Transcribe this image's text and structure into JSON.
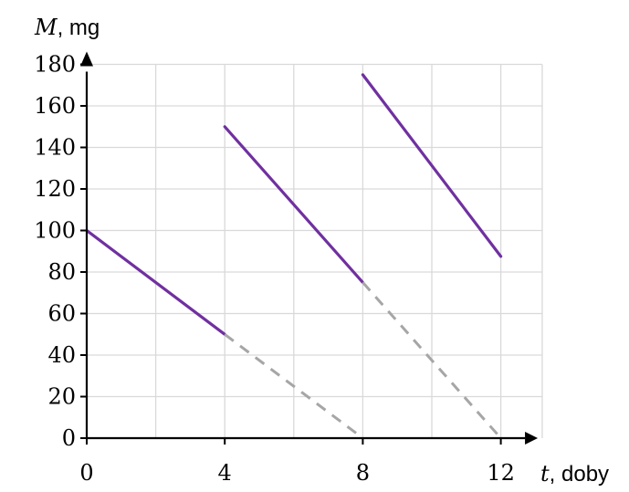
{
  "chart_data": {
    "type": "line",
    "x_label": {
      "var": "t",
      "unit": ", doby"
    },
    "y_label": {
      "var": "M",
      "unit": ", mg"
    },
    "xlim": [
      0,
      12.8
    ],
    "ylim": [
      0,
      180
    ],
    "x_ticks": [
      0,
      4,
      8,
      12
    ],
    "y_ticks": [
      0,
      20,
      40,
      60,
      80,
      100,
      120,
      140,
      160,
      180
    ],
    "x_grid": [
      0,
      2,
      4,
      6,
      8,
      10,
      12,
      13.2
    ],
    "grid": true,
    "series": [
      {
        "style": "solid",
        "color": "#7030a0",
        "points": [
          [
            0,
            100
          ],
          [
            4,
            50
          ]
        ]
      },
      {
        "style": "solid",
        "color": "#7030a0",
        "points": [
          [
            4,
            150
          ],
          [
            8,
            75
          ]
        ]
      },
      {
        "style": "solid",
        "color": "#7030a0",
        "points": [
          [
            8,
            175
          ],
          [
            12,
            87.5
          ]
        ]
      },
      {
        "style": "dashed",
        "color": "#a6a6a6",
        "points": [
          [
            4,
            50
          ],
          [
            8,
            0
          ]
        ]
      },
      {
        "style": "dashed",
        "color": "#a6a6a6",
        "points": [
          [
            8,
            75
          ],
          [
            12,
            0
          ]
        ]
      }
    ]
  }
}
